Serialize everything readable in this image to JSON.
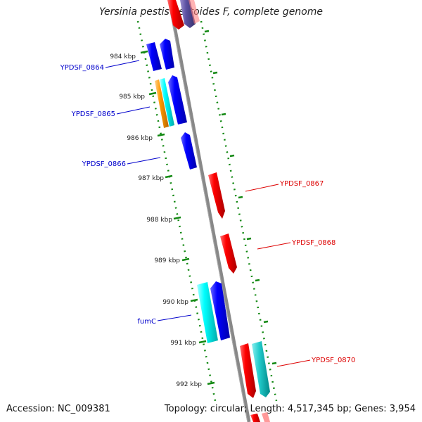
{
  "header": {
    "title": "Yersinia pestis Pestoides F, complete genome"
  },
  "footer": {
    "accession": "Accession: NC_009381",
    "summary": "Topology: circular; Length: 4,517,345 bp; Genes: 3,954"
  },
  "ticks": [
    {
      "label": "984 kbp"
    },
    {
      "label": "985 kbp"
    },
    {
      "label": "986 kbp"
    },
    {
      "label": "987 kbp"
    },
    {
      "label": "988 kbp"
    },
    {
      "label": "989 kbp"
    },
    {
      "label": "990 kbp"
    },
    {
      "label": "991 kbp"
    },
    {
      "label": "992 kbp"
    }
  ],
  "genes_left": [
    {
      "label": "YPDSF_0864",
      "color": "#0000cc"
    },
    {
      "label": "YPDSF_0865",
      "color": "#0000cc"
    },
    {
      "label": "YPDSF_0866",
      "color": "#0000cc"
    },
    {
      "label": "fumC",
      "color": "#0000cc"
    }
  ],
  "genes_right": [
    {
      "label": "YPDSF_0867",
      "color": "#dd0000"
    },
    {
      "label": "YPDSF_0868",
      "color": "#dd0000"
    },
    {
      "label": "YPDSF_0870",
      "color": "#dd0000"
    }
  ],
  "colors": {
    "backbone": "#888888",
    "ruler": "#118811",
    "forward_gene": "#0000ff",
    "reverse_gene": "#ff0000",
    "cyan_gene": "#00dddd",
    "orange_gene": "#ff9900",
    "purple_gene": "#5a4fa0"
  }
}
